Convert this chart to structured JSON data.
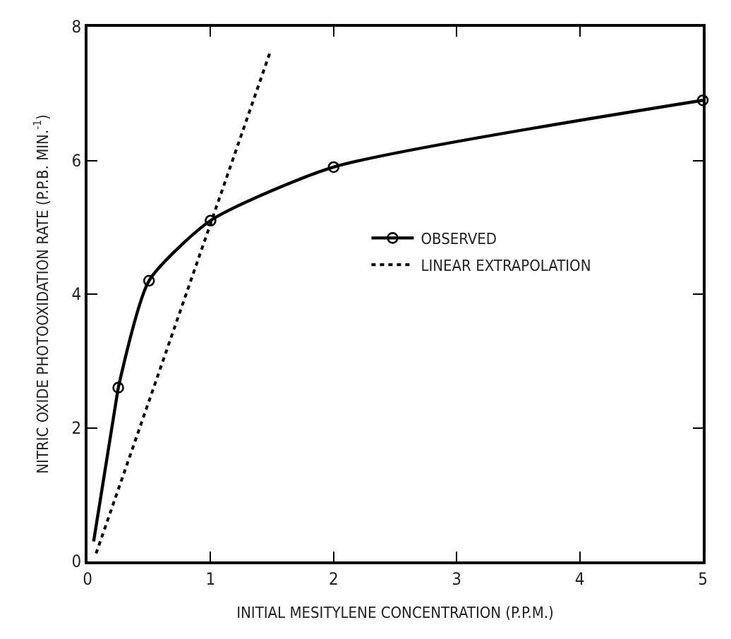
{
  "chart_data": {
    "type": "line",
    "xlabel": "INITIAL MESITYLENE CONCENTRATION (P.P.M.)",
    "ylabel": "NITRIC OXIDE PHOTOOXIDATION RATE (P.P.B. MIN.$^{-1}$)",
    "xlim": [
      0,
      5
    ],
    "xticks": [
      0,
      1,
      2,
      3,
      4,
      5
    ],
    "ylim": [
      0,
      8
    ],
    "yticks": [
      0,
      2,
      4,
      6,
      8
    ],
    "grid": false,
    "legend": "center",
    "series": [
      {
        "name": "OBSERVED",
        "color": "#000000",
        "x": [
          0.25,
          0.5,
          1,
          2,
          5
        ],
        "values": [
          2.6,
          4.2,
          5.1,
          5.9,
          6.9
        ],
        "marker": "circle",
        "line_style": "solid"
      },
      {
        "name": "LINEAR EXTRAPOLATION",
        "color": "#000000",
        "x": [
          0.07,
          1.48
        ],
        "values": [
          0.12,
          7.6
        ],
        "marker": "none",
        "line_style": "dotted"
      },
      {
        "color": "#000000",
        "x": [
          0.05,
          0.25
        ],
        "values": [
          0.3,
          2.6
        ],
        "marker": "none",
        "line_style": "solid"
      }
    ]
  }
}
